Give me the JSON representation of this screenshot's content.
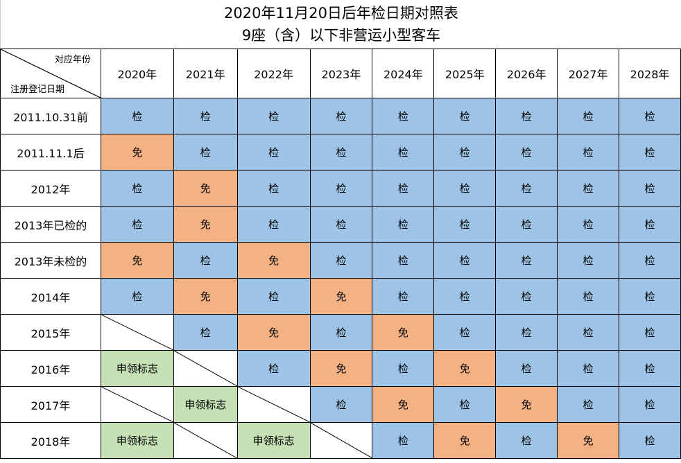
{
  "title": {
    "line1": "2020年11月20日后年检日期对照表",
    "line2": "9座（含）以下非营运小型客车"
  },
  "corner": {
    "top_label": "对应年份",
    "bottom_label": "注册登记日期"
  },
  "legend_colors": {
    "检": "#9dc3e6",
    "免": "#f4b183",
    "申领标志": "#c5e0b4",
    "blank": "#ffffff"
  },
  "columns": [
    "2020年",
    "2021年",
    "2022年",
    "2023年",
    "2024年",
    "2025年",
    "2026年",
    "2027年",
    "2028年"
  ],
  "rows": [
    {
      "label": "2011.10.31前",
      "cells": [
        "检",
        "检",
        "检",
        "检",
        "检",
        "检",
        "检",
        "检",
        "检"
      ]
    },
    {
      "label": "2011.11.1后",
      "cells": [
        "免",
        "检",
        "检",
        "检",
        "检",
        "检",
        "检",
        "检",
        "检"
      ]
    },
    {
      "label": "2012年",
      "cells": [
        "检",
        "免",
        "检",
        "检",
        "检",
        "检",
        "检",
        "检",
        "检"
      ]
    },
    {
      "label": "2013年已检的",
      "cells": [
        "检",
        "免",
        "检",
        "检",
        "检",
        "检",
        "检",
        "检",
        "检"
      ]
    },
    {
      "label": "2013年未检的",
      "cells": [
        "免",
        "检",
        "免",
        "检",
        "检",
        "检",
        "检",
        "检",
        "检"
      ]
    },
    {
      "label": "2014年",
      "cells": [
        "检",
        "免",
        "检",
        "免",
        "检",
        "检",
        "检",
        "检",
        "检"
      ]
    },
    {
      "label": "2015年",
      "cells": [
        "",
        "检",
        "免",
        "检",
        "免",
        "检",
        "检",
        "检",
        "检"
      ]
    },
    {
      "label": "2016年",
      "cells": [
        "申领标志",
        "",
        "检",
        "免",
        "检",
        "免",
        "检",
        "检",
        "检"
      ]
    },
    {
      "label": "2017年",
      "cells": [
        "",
        "申领标志",
        "",
        "检",
        "免",
        "检",
        "免",
        "检",
        "检"
      ]
    },
    {
      "label": "2018年",
      "cells": [
        "申领标志",
        "",
        "申领标志",
        "",
        "检",
        "免",
        "检",
        "免",
        "检"
      ]
    }
  ]
}
